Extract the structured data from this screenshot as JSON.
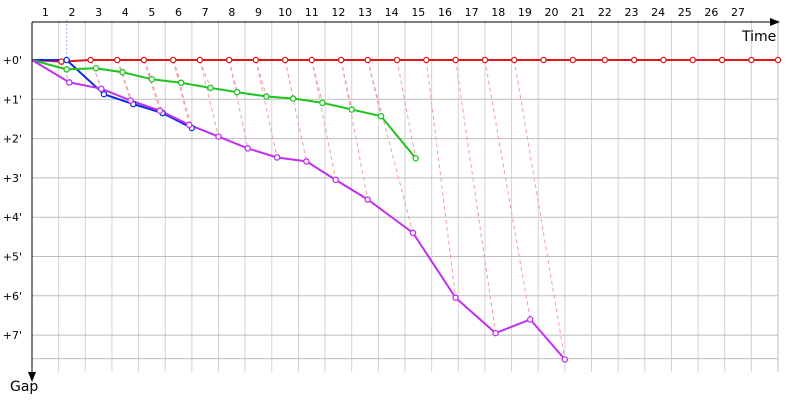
{
  "chart_data": {
    "type": "line",
    "title": "",
    "xlabel": "Time",
    "ylabel": "Gap",
    "x_ticks": [
      1,
      2,
      3,
      4,
      5,
      6,
      7,
      8,
      9,
      10,
      11,
      12,
      13,
      14,
      15,
      16,
      17,
      18,
      19,
      20,
      21,
      22,
      23,
      24,
      25,
      26,
      27
    ],
    "y_ticks": [
      "+0'",
      "+1'",
      "+2'",
      "+3'",
      "+4'",
      "+5'",
      "+6'",
      "+7'"
    ],
    "xlim": [
      0,
      28
    ],
    "ylim": [
      0,
      7.6
    ],
    "y_inverted": true,
    "grid": true,
    "colors": {
      "grid": "#d2d2d2",
      "hgrid": "#bdbdbd",
      "axis": "#000000",
      "connector": "#f2a0a0"
    },
    "series": [
      {
        "color": "#e01818",
        "points": [
          [
            0,
            0
          ],
          [
            1.1,
            0.04
          ],
          [
            2.2,
            0
          ],
          [
            3.2,
            0
          ],
          [
            4.2,
            0
          ],
          [
            5.3,
            0
          ],
          [
            6.3,
            0
          ],
          [
            7.4,
            0
          ],
          [
            8.4,
            0
          ],
          [
            9.5,
            0
          ],
          [
            10.5,
            0
          ],
          [
            11.6,
            0
          ],
          [
            12.6,
            0
          ],
          [
            13.7,
            0
          ],
          [
            14.8,
            0
          ],
          [
            15.9,
            0
          ],
          [
            17.0,
            0
          ],
          [
            18.1,
            0
          ],
          [
            19.2,
            0
          ],
          [
            20.3,
            0
          ],
          [
            21.5,
            0
          ],
          [
            22.6,
            0
          ],
          [
            23.7,
            0
          ],
          [
            24.8,
            0
          ],
          [
            25.9,
            0
          ],
          [
            27.0,
            0
          ],
          [
            28.0,
            0
          ]
        ]
      },
      {
        "color": "#0c2ce0",
        "points": [
          [
            0,
            0
          ],
          [
            1.3,
            0
          ],
          [
            2.7,
            0.87
          ],
          [
            3.8,
            1.12
          ],
          [
            4.9,
            1.35
          ],
          [
            6.0,
            1.73
          ]
        ]
      },
      {
        "color": "#1ec41e",
        "points": [
          [
            0,
            0
          ],
          [
            1.3,
            0.24
          ],
          [
            2.4,
            0.21
          ],
          [
            3.4,
            0.31
          ],
          [
            4.5,
            0.49
          ],
          [
            5.6,
            0.58
          ],
          [
            6.7,
            0.71
          ],
          [
            7.7,
            0.82
          ],
          [
            8.8,
            0.93
          ],
          [
            9.8,
            0.98
          ],
          [
            10.9,
            1.09
          ],
          [
            12.0,
            1.26
          ],
          [
            13.1,
            1.43
          ],
          [
            14.4,
            2.5
          ]
        ]
      },
      {
        "color": "#c030f0",
        "points": [
          [
            0,
            0
          ],
          [
            1.4,
            0.57
          ],
          [
            2.6,
            0.73
          ],
          [
            3.7,
            1.03
          ],
          [
            4.8,
            1.29
          ],
          [
            5.9,
            1.65
          ],
          [
            7.0,
            1.95
          ],
          [
            8.1,
            2.25
          ],
          [
            9.2,
            2.48
          ],
          [
            10.3,
            2.58
          ],
          [
            11.4,
            3.05
          ],
          [
            12.6,
            3.55
          ],
          [
            14.3,
            4.4
          ],
          [
            15.9,
            6.05
          ],
          [
            17.4,
            6.95
          ],
          [
            18.7,
            6.6
          ],
          [
            20.0,
            7.62
          ]
        ]
      }
    ],
    "connectors": [
      [
        [
          1.1,
          0.04
        ],
        [
          1.4,
          0.57
        ]
      ],
      [
        [
          2.2,
          0
        ],
        [
          2.6,
          0.73
        ]
      ],
      [
        [
          3.2,
          0
        ],
        [
          3.7,
          1.03
        ]
      ],
      [
        [
          4.2,
          0
        ],
        [
          4.8,
          1.29
        ]
      ],
      [
        [
          5.3,
          0
        ],
        [
          5.9,
          1.65
        ]
      ],
      [
        [
          6.3,
          0
        ],
        [
          7.0,
          1.95
        ]
      ],
      [
        [
          7.4,
          0
        ],
        [
          8.1,
          2.25
        ]
      ],
      [
        [
          8.4,
          0
        ],
        [
          9.2,
          2.48
        ]
      ],
      [
        [
          9.5,
          0
        ],
        [
          10.3,
          2.58
        ]
      ],
      [
        [
          10.5,
          0
        ],
        [
          11.4,
          3.05
        ]
      ],
      [
        [
          11.6,
          0
        ],
        [
          12.6,
          3.55
        ]
      ],
      [
        [
          12.6,
          0
        ],
        [
          14.3,
          4.4
        ]
      ],
      [
        [
          14.8,
          0
        ],
        [
          15.9,
          6.05
        ]
      ],
      [
        [
          15.9,
          0
        ],
        [
          17.4,
          6.95
        ]
      ],
      [
        [
          17.0,
          0
        ],
        [
          18.7,
          6.6
        ]
      ],
      [
        [
          18.1,
          0
        ],
        [
          20.0,
          7.62
        ]
      ],
      [
        [
          1.1,
          0.04
        ],
        [
          1.3,
          0.24
        ]
      ],
      [
        [
          2.2,
          0
        ],
        [
          2.4,
          0.21
        ]
      ],
      [
        [
          3.2,
          0
        ],
        [
          3.4,
          0.31
        ]
      ],
      [
        [
          4.2,
          0
        ],
        [
          4.5,
          0.49
        ]
      ],
      [
        [
          5.3,
          0
        ],
        [
          5.6,
          0.58
        ]
      ],
      [
        [
          6.3,
          0
        ],
        [
          6.7,
          0.71
        ]
      ],
      [
        [
          7.4,
          0
        ],
        [
          7.7,
          0.82
        ]
      ],
      [
        [
          8.4,
          0
        ],
        [
          8.8,
          0.93
        ]
      ],
      [
        [
          9.5,
          0
        ],
        [
          9.8,
          0.98
        ]
      ],
      [
        [
          10.5,
          0
        ],
        [
          10.9,
          1.09
        ]
      ],
      [
        [
          11.6,
          0
        ],
        [
          12.0,
          1.26
        ]
      ],
      [
        [
          12.6,
          0
        ],
        [
          13.1,
          1.43
        ]
      ],
      [
        [
          13.7,
          0
        ],
        [
          14.4,
          2.5
        ]
      ],
      [
        [
          1.1,
          0.04
        ],
        [
          1.3,
          0
        ]
      ],
      [
        [
          2.2,
          0
        ],
        [
          2.7,
          0.87
        ]
      ],
      [
        [
          3.2,
          0
        ],
        [
          3.8,
          1.12
        ]
      ],
      [
        [
          4.2,
          0
        ],
        [
          4.9,
          1.35
        ]
      ],
      [
        [
          5.3,
          0
        ],
        [
          6.0,
          1.73
        ]
      ]
    ],
    "vertical_marker": {
      "x": 1.3,
      "color": "#9fb3ff"
    }
  }
}
